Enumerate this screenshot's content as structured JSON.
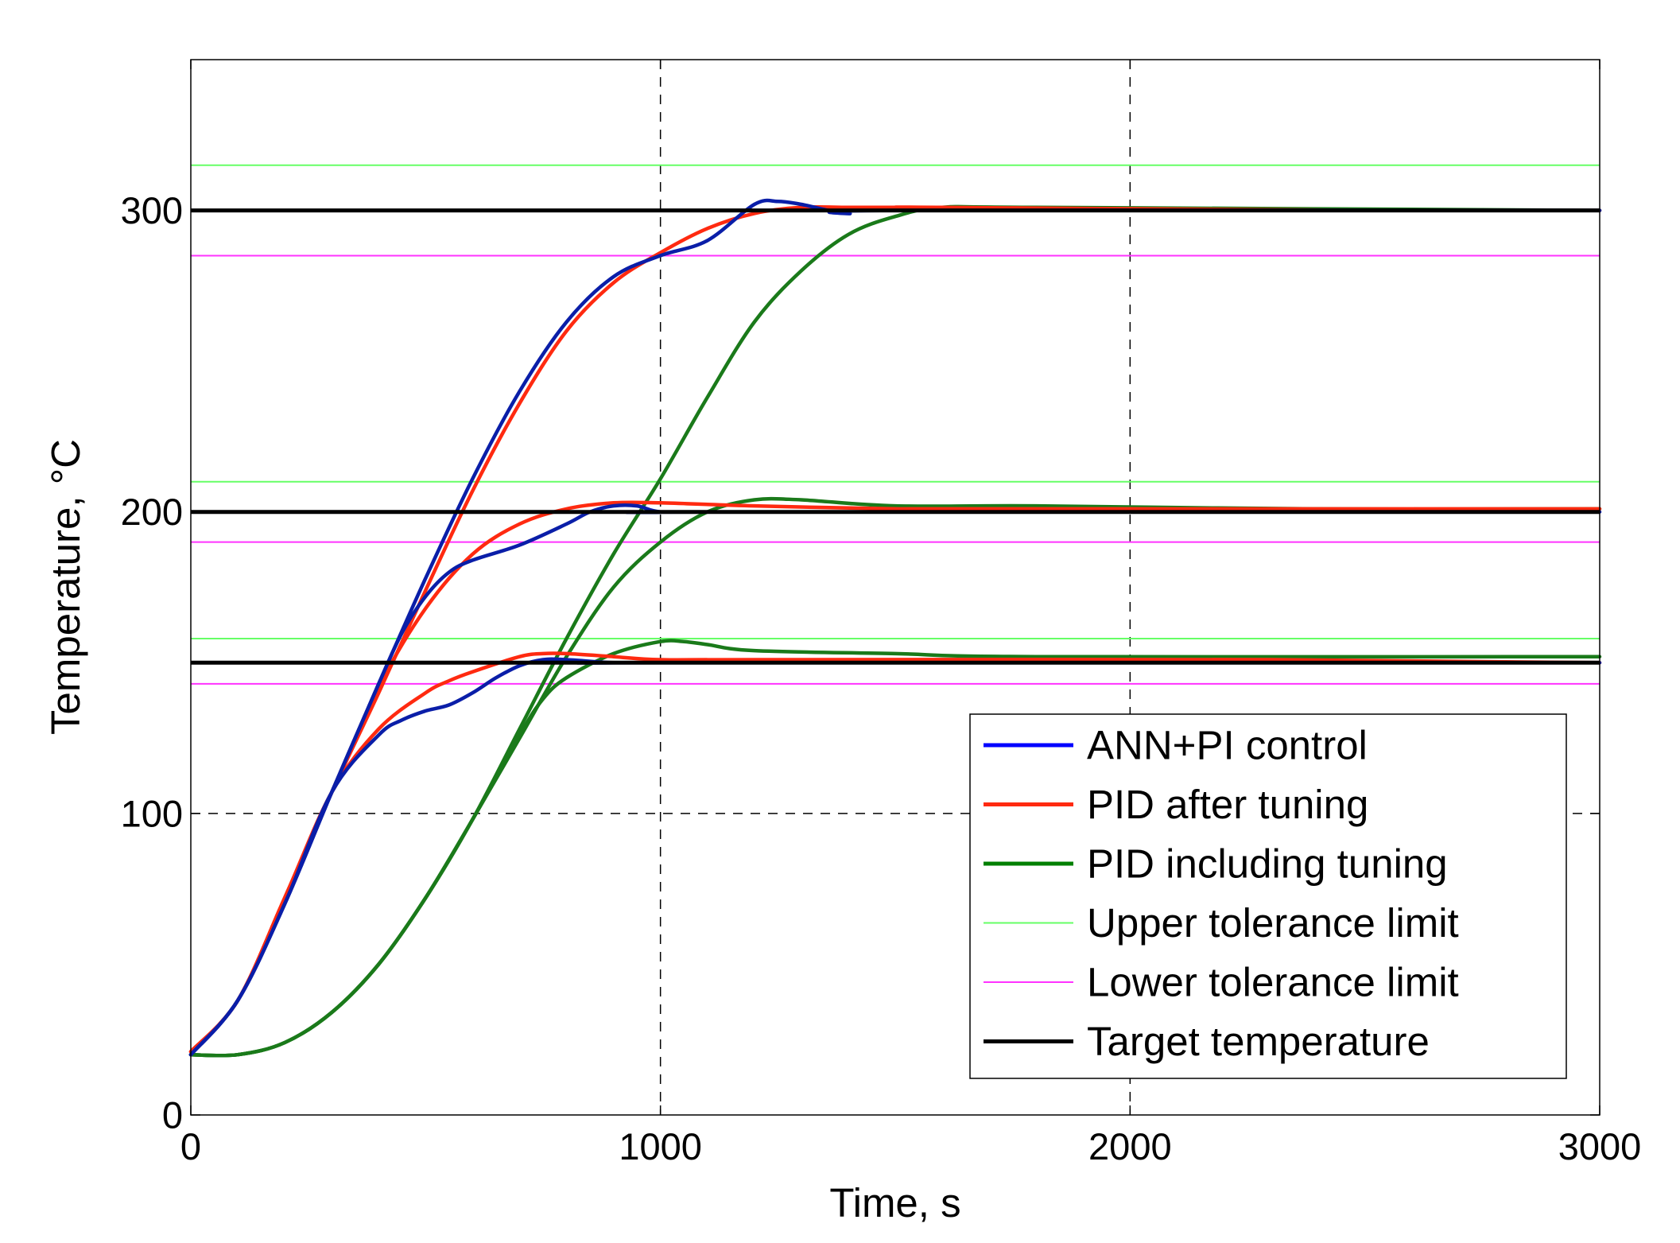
{
  "chart_data": {
    "type": "line",
    "title": "",
    "xlabel": "Time, s",
    "ylabel": "Temperature, °C",
    "xlim": [
      0,
      3000
    ],
    "ylim": [
      0,
      350
    ],
    "xticks": [
      0,
      1000,
      2000,
      3000
    ],
    "xtick_labels": [
      "0",
      "1000",
      "2000",
      "3000"
    ],
    "yticks": [
      0,
      100,
      200,
      300
    ],
    "ytick_labels": [
      "0",
      "100",
      "200",
      "300"
    ],
    "grid": "dashed at x=1000, x=2000 and y=100",
    "legend_position": "bottom-right",
    "colors": {
      "ann": "#0a1ea8",
      "pid_after": "#ff2a10",
      "pid_including": "#1a7a1a",
      "upper": "#66ff66",
      "lower": "#ff33ff",
      "target": "#000000",
      "legend_ann": "#0000ff",
      "legend_pid_including": "#008000"
    },
    "series": [
      {
        "name": "ANN+PI control",
        "key": "ann",
        "curves": [
          {
            "setpoint": 300,
            "x": [
              0,
              100,
              200,
              300,
              400,
              500,
              600,
              700,
              800,
              900,
              1000,
              1100,
              1200,
              1250,
              1300,
              1400,
              1500,
              3000
            ],
            "y": [
              20,
              38,
              70,
              107,
              143,
              178,
              211,
              240,
              263,
              278,
              285,
              290,
              302,
              303,
              302,
              299,
              300,
              300
            ]
          },
          {
            "setpoint": 200,
            "x": [
              0,
              100,
              200,
              300,
              400,
              450,
              500,
              550,
              600,
              700,
              800,
              850,
              900,
              950,
              1000,
              1100,
              3000
            ],
            "y": [
              20,
              38,
              70,
              107,
              143,
              160,
              172,
              180,
              184,
              189,
              196,
              200,
              202,
              202,
              200,
              200,
              200
            ]
          },
          {
            "setpoint": 150,
            "x": [
              0,
              100,
              200,
              300,
              400,
              450,
              500,
              550,
              600,
              650,
              700,
              750,
              800,
              900,
              1000,
              3000
            ],
            "y": [
              20,
              38,
              70,
              107,
              126,
              131,
              134,
              136,
              140,
              145,
              149,
              151,
              151,
              150,
              150,
              150
            ]
          }
        ]
      },
      {
        "name": "PID after tuning",
        "key": "pid_after",
        "curves": [
          {
            "setpoint": 300,
            "x": [
              0,
              100,
              200,
              300,
              400,
              500,
              600,
              700,
              800,
              900,
              1000,
              1100,
              1200,
              1300,
              1400,
              1500,
              1600,
              2500,
              3000
            ],
            "y": [
              21,
              38,
              72,
              107,
              140,
              174,
              207,
              236,
              260,
              276,
              286,
              294,
              299,
              301,
              301,
              301,
              301,
              300,
              300
            ]
          },
          {
            "setpoint": 200,
            "x": [
              0,
              100,
              200,
              300,
              400,
              500,
              600,
              700,
              800,
              900,
              1000,
              1200,
              1500,
              1600,
              3000
            ],
            "y": [
              21,
              38,
              72,
              107,
              142,
              168,
              186,
              196,
              201,
              203,
              203,
              202,
              201,
              201,
              201
            ]
          },
          {
            "setpoint": 150,
            "x": [
              0,
              100,
              200,
              300,
              400,
              500,
              550,
              600,
              700,
              750,
              800,
              900,
              1000,
              1200,
              2300,
              3000
            ],
            "y": [
              21,
              38,
              72,
              107,
              128,
              140,
              144,
              147,
              152,
              153,
              153,
              152,
              151,
              151,
              151,
              150
            ]
          }
        ]
      },
      {
        "name": "PID including tuning",
        "key": "pid_including",
        "curves": [
          {
            "setpoint": 300,
            "x": [
              0,
              100,
              200,
              300,
              400,
              500,
              600,
              700,
              800,
              900,
              1000,
              1100,
              1200,
              1300,
              1400,
              1500,
              1600,
              1800,
              3000
            ],
            "y": [
              20,
              20,
              24,
              34,
              50,
              72,
              98,
              128,
              158,
              186,
              211,
              238,
              263,
              280,
              292,
              298,
              301,
              301,
              300
            ]
          },
          {
            "setpoint": 200,
            "x": [
              0,
              100,
              200,
              300,
              400,
              500,
              600,
              700,
              800,
              900,
              1000,
              1100,
              1200,
              1300,
              1500,
              1800,
              2400,
              3000
            ],
            "y": [
              20,
              20,
              24,
              34,
              50,
              72,
              98,
              125,
              152,
              175,
              190,
              200,
              204,
              204,
              202,
              202,
              201,
              201
            ]
          },
          {
            "setpoint": 150,
            "x": [
              0,
              100,
              200,
              300,
              400,
              500,
              600,
              700,
              750,
              800,
              900,
              1000,
              1050,
              1100,
              1200,
              1500,
              1800,
              3000
            ],
            "y": [
              20,
              20,
              24,
              34,
              50,
              72,
              98,
              126,
              138,
              145,
              153,
              157,
              157,
              156,
              154,
              153,
              152,
              152
            ]
          }
        ]
      }
    ],
    "limits": {
      "upper": {
        "name": "Upper tolerance limit",
        "values": [
          315,
          210,
          158
        ]
      },
      "lower": {
        "name": "Lower tolerance limit",
        "values": [
          285,
          190,
          143
        ]
      },
      "target": {
        "name": "Target temperature",
        "values": [
          300,
          200,
          150
        ]
      }
    },
    "legend": [
      {
        "label": "ANN+PI control",
        "color": "#0000ff",
        "width": 5
      },
      {
        "label": "PID after tuning",
        "color": "#ff2a10",
        "width": 5
      },
      {
        "label": "PID including tuning",
        "color": "#008000",
        "width": 5
      },
      {
        "label": "Upper tolerance limit",
        "color": "#66ff66",
        "width": 2
      },
      {
        "label": "Lower tolerance limit",
        "color": "#ff33ff",
        "width": 2
      },
      {
        "label": "Target temperature",
        "color": "#000000",
        "width": 5
      }
    ]
  }
}
